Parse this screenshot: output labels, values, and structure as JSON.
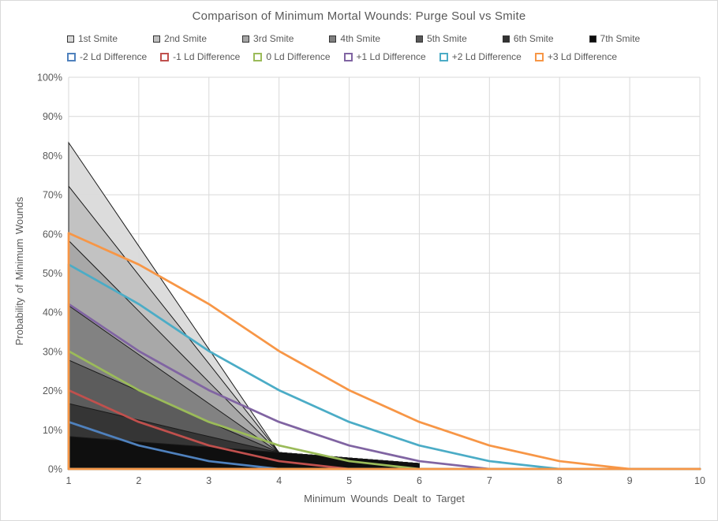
{
  "title": "Comparison of Minimum Mortal Wounds: Purge Soul vs Smite",
  "chart_data": {
    "type": "area",
    "x": [
      1,
      2,
      3,
      4,
      5,
      6,
      7,
      8,
      9,
      10
    ],
    "x_ticks": [
      "1",
      "2",
      "3",
      "4",
      "5",
      "6",
      "7",
      "8",
      "9",
      "10"
    ],
    "y_ticks": [
      "0%",
      "10%",
      "20%",
      "30%",
      "40%",
      "50%",
      "60%",
      "70%",
      "80%",
      "90%",
      "100%"
    ],
    "xlabel": "Minimum Wounds Dealt to Target",
    "ylabel": "Probability of Minimum Wounds",
    "ylim": [
      0,
      100
    ],
    "grid": true,
    "legend_position": "top",
    "area_series": [
      {
        "name": "1st Smite",
        "color": "#d9d9d9",
        "values": [
          83.3,
          56.9,
          30.6,
          4.2,
          2.8,
          1.4
        ]
      },
      {
        "name": "2nd Smite",
        "color": "#c0c0c0",
        "values": [
          72.2,
          49.5,
          26.9,
          4.2,
          2.8,
          1.4
        ]
      },
      {
        "name": "3rd Smite",
        "color": "#a6a6a6",
        "values": [
          58.3,
          40.3,
          22.2,
          4.2,
          2.8,
          1.4
        ]
      },
      {
        "name": "4th Smite",
        "color": "#7f7f7f",
        "values": [
          41.7,
          29.2,
          16.7,
          4.2,
          2.8,
          1.4
        ]
      },
      {
        "name": "5th Smite",
        "color": "#595959",
        "values": [
          27.8,
          19.9,
          12.0,
          4.2,
          2.8,
          1.4
        ]
      },
      {
        "name": "6th Smite",
        "color": "#333333",
        "values": [
          16.7,
          12.5,
          8.3,
          4.2,
          2.8,
          1.4
        ]
      },
      {
        "name": "7th Smite",
        "color": "#0d0d0d",
        "values": [
          8.3,
          6.9,
          5.6,
          4.2,
          2.8,
          1.4
        ]
      }
    ],
    "line_series": [
      {
        "name": "-2 Ld Difference",
        "color": "#4f81bd",
        "values": [
          12.0,
          6.0,
          2.0,
          0,
          0,
          0,
          0,
          0,
          0,
          0
        ]
      },
      {
        "name": "-1 Ld Difference",
        "color": "#c0504d",
        "values": [
          20.1,
          12.0,
          6.0,
          2.0,
          0,
          0,
          0,
          0,
          0,
          0
        ]
      },
      {
        "name": "0 Ld Difference",
        "color": "#9bbb59",
        "values": [
          30.1,
          20.1,
          12.0,
          6.0,
          2.0,
          0,
          0,
          0,
          0,
          0
        ]
      },
      {
        "name": "+1 Ld Difference",
        "color": "#8064a2",
        "values": [
          42.1,
          30.1,
          20.1,
          12.0,
          6.0,
          2.0,
          0,
          0,
          0,
          0
        ]
      },
      {
        "name": "+2 Ld Difference",
        "color": "#4bacc6",
        "values": [
          52.2,
          42.1,
          30.1,
          20.1,
          12.0,
          6.0,
          2.0,
          0,
          0,
          0
        ]
      },
      {
        "name": "+3 Ld Difference",
        "color": "#f79646",
        "values": [
          60.2,
          52.2,
          42.1,
          30.1,
          20.1,
          12.0,
          6.0,
          2.0,
          0,
          0
        ]
      }
    ]
  },
  "style": {
    "text_color": "#595959",
    "gridline_color": "#d9d9d9",
    "axis_line_color": "#bfbfbf",
    "area_border_color": "#1a1a1a",
    "area_fill_opacity": 0.93,
    "line_width": 2.75,
    "background": "#ffffff"
  }
}
